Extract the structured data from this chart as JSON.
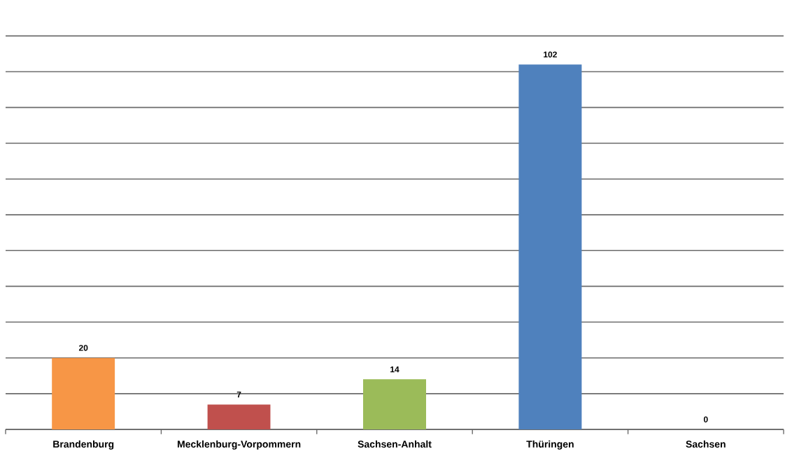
{
  "chart_data": {
    "type": "bar",
    "categories": [
      "Brandenburg",
      "Mecklenburg-Vorpommern",
      "Sachsen-Anhalt",
      "Thüringen",
      "Sachsen"
    ],
    "values": [
      20,
      7,
      14,
      102,
      0
    ],
    "colors": [
      "#f79646",
      "#c0504d",
      "#9bbb59",
      "#4f81bd",
      "#4f81bd"
    ],
    "grid": "y",
    "data_labels": true
  }
}
